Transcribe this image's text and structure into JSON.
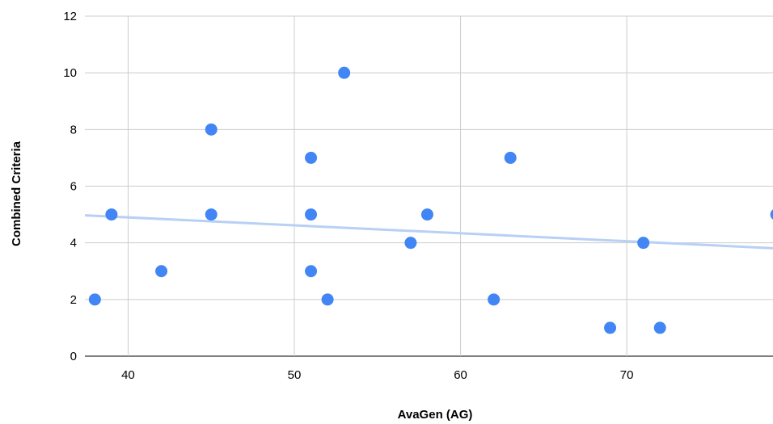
{
  "chart_data": {
    "type": "scatter",
    "xlabel": "AvaGen (AG)",
    "ylabel": "Combined Criteria",
    "xlim": [
      37.4,
      78.8
    ],
    "ylim": [
      0,
      12
    ],
    "x_ticks": [
      "40",
      "50",
      "60",
      "70"
    ],
    "y_ticks": [
      "0",
      "2",
      "4",
      "6",
      "8",
      "10",
      "12"
    ],
    "grid": true,
    "series": [
      {
        "color": "#4285f4",
        "points": [
          {
            "x": 38,
            "y": 2
          },
          {
            "x": 39,
            "y": 5
          },
          {
            "x": 42,
            "y": 3
          },
          {
            "x": 45,
            "y": 8
          },
          {
            "x": 45,
            "y": 5
          },
          {
            "x": 51,
            "y": 7
          },
          {
            "x": 51,
            "y": 5
          },
          {
            "x": 51,
            "y": 3
          },
          {
            "x": 52,
            "y": 2
          },
          {
            "x": 53,
            "y": 10
          },
          {
            "x": 57,
            "y": 4
          },
          {
            "x": 58,
            "y": 5
          },
          {
            "x": 62,
            "y": 2
          },
          {
            "x": 63,
            "y": 7
          },
          {
            "x": 69,
            "y": 1
          },
          {
            "x": 71,
            "y": 4
          },
          {
            "x": 72,
            "y": 1
          },
          {
            "x": 79,
            "y": 5
          }
        ]
      }
    ],
    "trendline": {
      "color": "#b8d0f5",
      "x": [
        37.4,
        78.8
      ],
      "y": [
        4.97,
        3.81
      ]
    }
  }
}
